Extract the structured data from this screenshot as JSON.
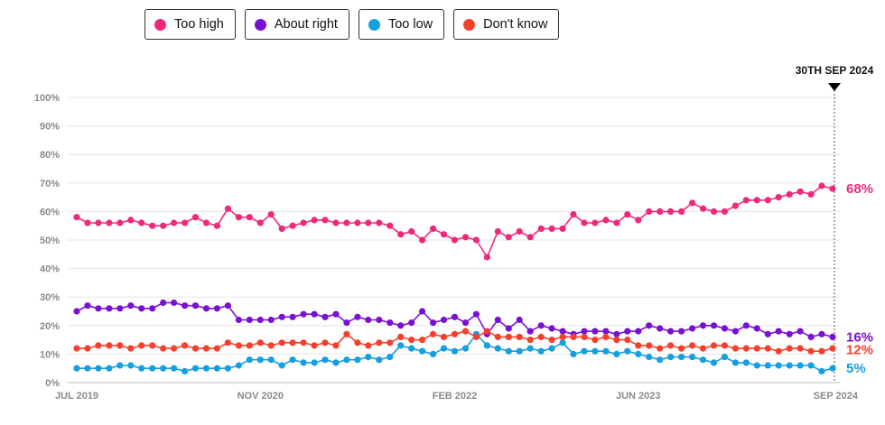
{
  "legend": [
    {
      "label": "Too high",
      "color": "#f0287c"
    },
    {
      "label": "About right",
      "color": "#7a10d2"
    },
    {
      "label": "Too low",
      "color": "#159fe0"
    },
    {
      "label": "Don't know",
      "color": "#f5402c"
    }
  ],
  "marker": {
    "label": "30TH SEP 2024"
  },
  "chart_data": {
    "type": "line",
    "title": "",
    "xlabel": "",
    "ylabel": "",
    "ylim": [
      0,
      100
    ],
    "y_ticks": [
      "0%",
      "10%",
      "20%",
      "30%",
      "40%",
      "50%",
      "60%",
      "70%",
      "80%",
      "90%",
      "100%"
    ],
    "x_ticks": [
      {
        "label": "JUL 2019",
        "index": 0
      },
      {
        "label": "NOV 2020",
        "index": 17
      },
      {
        "label": "FEB 2022",
        "index": 35
      },
      {
        "label": "JUN 2023",
        "index": 52
      },
      {
        "label": "SEP 2024",
        "index": 70
      }
    ],
    "n_points": 71,
    "series": [
      {
        "name": "Too high",
        "color": "#f0287c",
        "end_label": "68%",
        "values": [
          58,
          56,
          56,
          56,
          56,
          57,
          56,
          55,
          55,
          56,
          56,
          58,
          56,
          55,
          61,
          58,
          58,
          56,
          59,
          54,
          55,
          56,
          57,
          57,
          56,
          56,
          56,
          56,
          56,
          55,
          52,
          53,
          50,
          54,
          52,
          50,
          51,
          50,
          44,
          53,
          51,
          53,
          51,
          54,
          54,
          54,
          59,
          56,
          56,
          57,
          56,
          59,
          57,
          60,
          60,
          60,
          60,
          63,
          61,
          60,
          60,
          62,
          64,
          64,
          64,
          65,
          66,
          67,
          66,
          69,
          68
        ]
      },
      {
        "name": "About right",
        "color": "#7a10d2",
        "end_label": "16%",
        "values": [
          25,
          27,
          26,
          26,
          26,
          27,
          26,
          26,
          28,
          28,
          27,
          27,
          26,
          26,
          27,
          22,
          22,
          22,
          22,
          23,
          23,
          24,
          24,
          23,
          24,
          21,
          23,
          22,
          22,
          21,
          20,
          21,
          25,
          21,
          22,
          23,
          21,
          24,
          17,
          22,
          19,
          22,
          18,
          20,
          19,
          18,
          17,
          18,
          18,
          18,
          17,
          18,
          18,
          20,
          19,
          18,
          18,
          19,
          20,
          20,
          19,
          18,
          20,
          19,
          17,
          18,
          17,
          18,
          16,
          17,
          16
        ]
      },
      {
        "name": "Too low",
        "color": "#159fe0",
        "end_label": "5%",
        "values": [
          5,
          5,
          5,
          5,
          6,
          6,
          5,
          5,
          5,
          5,
          4,
          5,
          5,
          5,
          5,
          6,
          8,
          8,
          8,
          6,
          8,
          7,
          7,
          8,
          7,
          8,
          8,
          9,
          8,
          9,
          13,
          12,
          11,
          10,
          12,
          11,
          12,
          17,
          13,
          12,
          11,
          11,
          12,
          11,
          12,
          14,
          10,
          11,
          11,
          11,
          10,
          11,
          10,
          9,
          8,
          9,
          9,
          9,
          8,
          7,
          9,
          7,
          7,
          6,
          6,
          6,
          6,
          6,
          6,
          4,
          5
        ]
      },
      {
        "name": "Don't know",
        "color": "#f5402c",
        "end_label": "12%",
        "values": [
          12,
          12,
          13,
          13,
          13,
          12,
          13,
          13,
          12,
          12,
          13,
          12,
          12,
          12,
          14,
          13,
          13,
          14,
          13,
          14,
          14,
          14,
          13,
          14,
          13,
          17,
          14,
          13,
          14,
          14,
          16,
          15,
          15,
          17,
          16,
          17,
          18,
          16,
          18,
          16,
          16,
          16,
          15,
          16,
          15,
          16,
          16,
          16,
          15,
          16,
          15,
          15,
          13,
          13,
          12,
          13,
          12,
          13,
          12,
          13,
          13,
          12,
          12,
          12,
          12,
          11,
          12,
          12,
          11,
          11,
          12
        ]
      }
    ]
  }
}
